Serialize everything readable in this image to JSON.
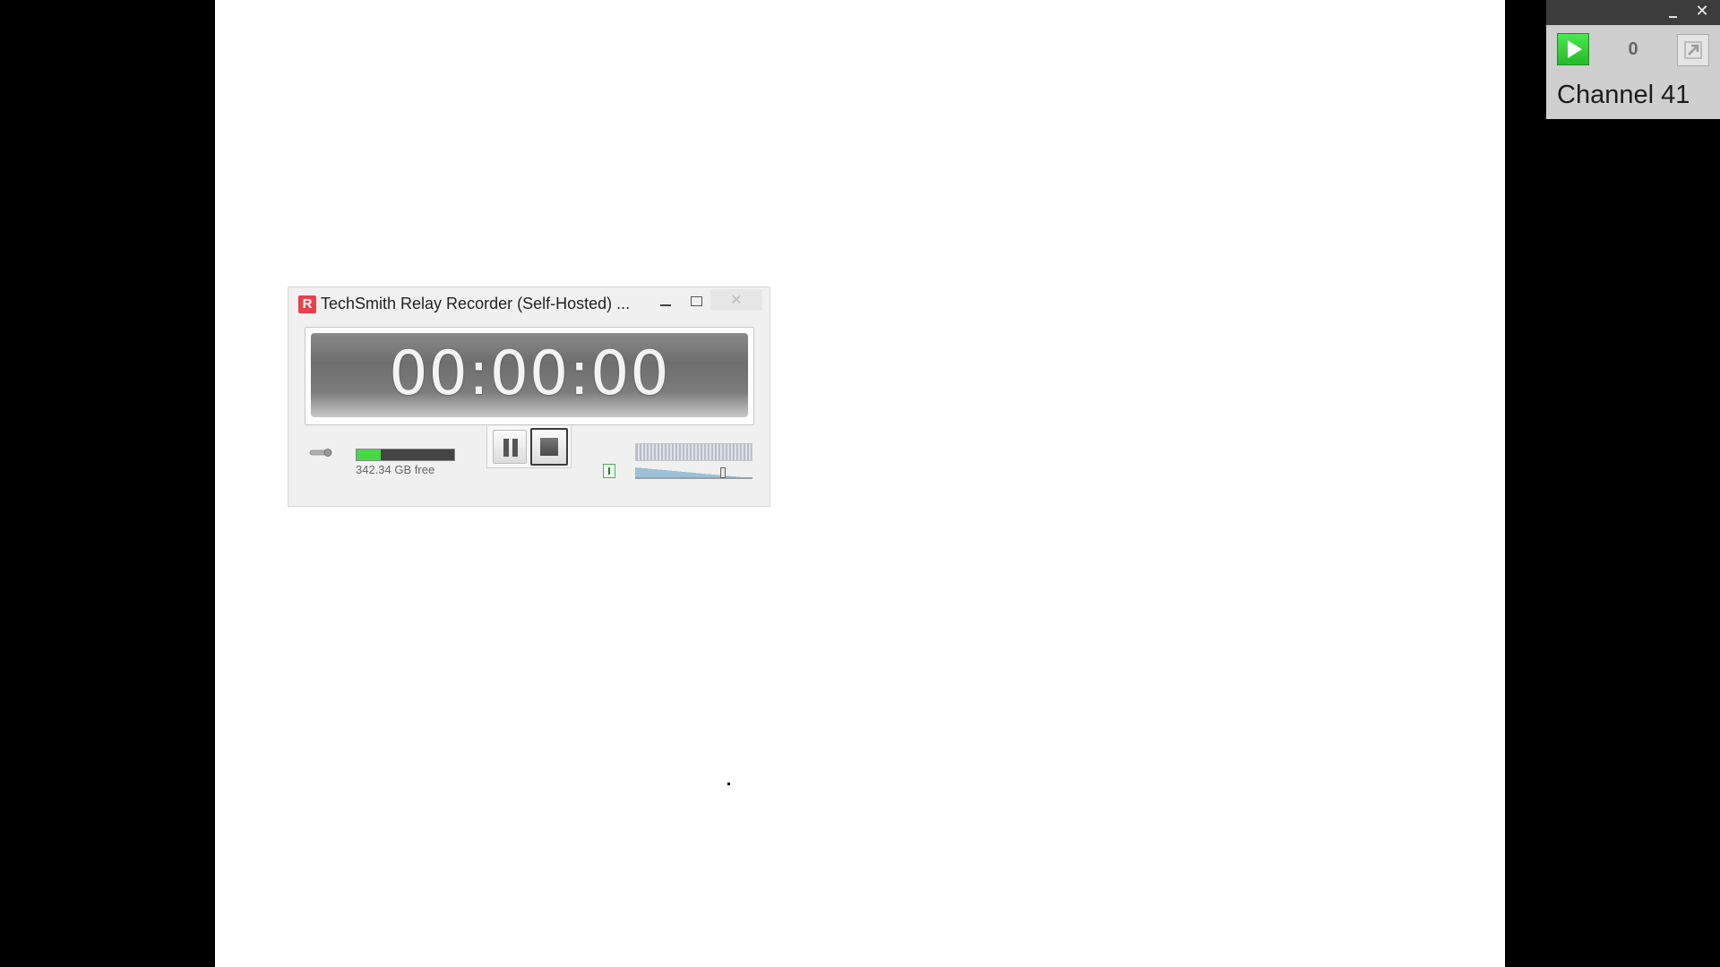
{
  "recorder": {
    "app_icon_letter": "R",
    "title": "TechSmith Relay Recorder (Self-Hosted) ...",
    "close_symbol": "✕",
    "timer": "00:00:00",
    "storage_free_label": "342.34 GB free",
    "storage_used_fraction": 0.25,
    "volume_level_fraction": 0.75,
    "colors": {
      "storage_fill": "#45d945",
      "app_icon": "#e8414b"
    },
    "icons": {
      "mic": "microphone-icon",
      "pause": "pause-icon",
      "stop": "stop-icon",
      "volume": "volume-icon"
    }
  },
  "channel_widget": {
    "count": "0",
    "channel_label": "Channel 41",
    "close_symbol": "✕",
    "colors": {
      "play": "#2fcf34",
      "topbar": "#3c3c3c"
    },
    "icons": {
      "play": "play-icon",
      "popout": "popout-icon"
    }
  }
}
